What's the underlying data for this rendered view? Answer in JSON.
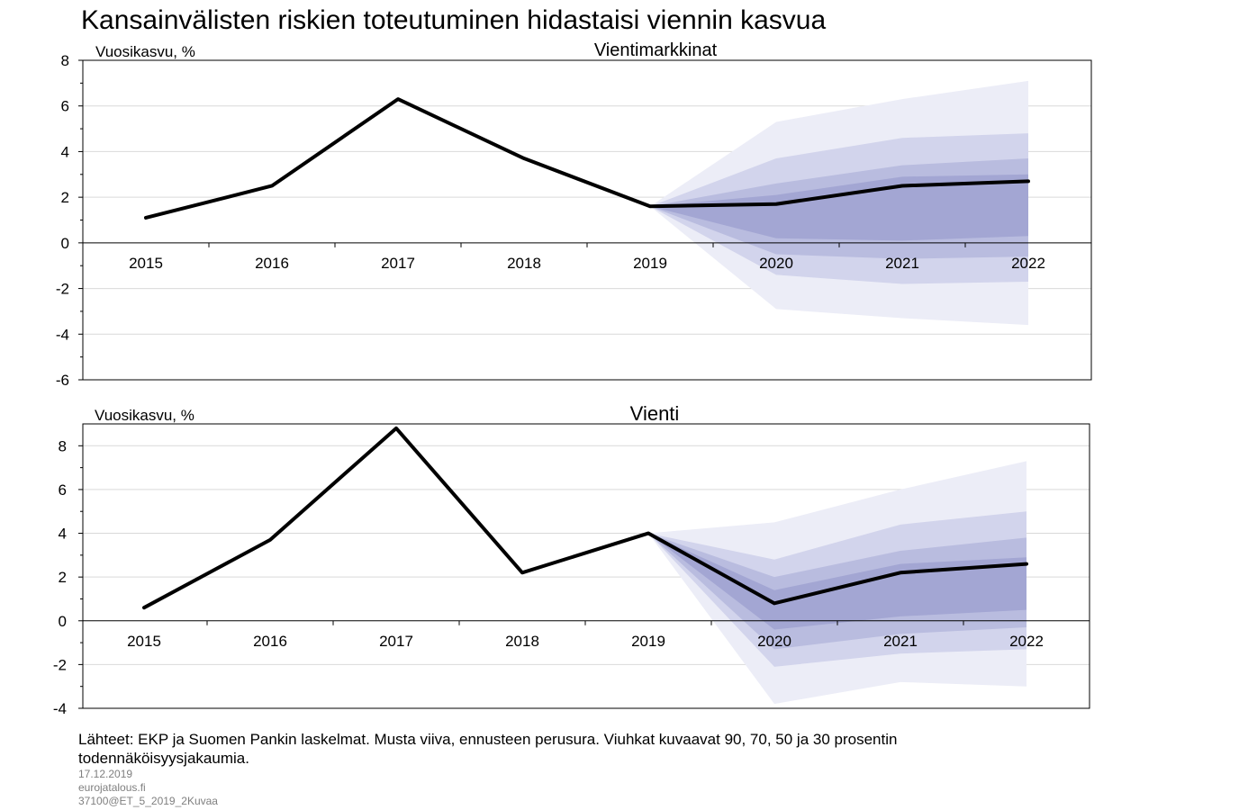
{
  "title": "Kansainvälisten riskien toteutuminen hidastaisi viennin kasvua",
  "source_note": "Lähteet: EKP ja Suomen Pankin laskelmat. Musta viiva, ennusteen perusura. Viuhkat kuvaavat 90, 70, 50 ja 30 prosentin todennäköisyysjakaumia.",
  "meta": {
    "date": "17.12.2019",
    "site": "eurojatalous.fi",
    "code": "37100@ET_5_2019_2Kuvaa"
  },
  "colors": {
    "line": "#000000",
    "fan_90": "#ecedf7",
    "fan_70": "#d2d4ec",
    "fan_50": "#b9bcdf",
    "fan_30": "#a3a6d3",
    "grid": "#d9d9d9"
  },
  "chart_data": [
    {
      "type": "line",
      "title": "Vientimarkkinat",
      "ylabel": "Vuosikasvu, %",
      "categories": [
        "2015",
        "2016",
        "2017",
        "2018",
        "2019",
        "2020",
        "2021",
        "2022"
      ],
      "ylim": [
        -6,
        8
      ],
      "yticks": [
        -6,
        -4,
        -2,
        0,
        2,
        4,
        6,
        8
      ],
      "grid": true,
      "series": [
        {
          "values": [
            1.1,
            2.5,
            6.3,
            3.7,
            1.6,
            1.7,
            2.5,
            2.7
          ]
        }
      ],
      "fan": {
        "start_index": 4,
        "bands": [
          {
            "probability": 90,
            "low": [
              1.6,
              -2.9,
              -3.3,
              -3.6
            ],
            "high": [
              1.6,
              5.3,
              6.3,
              7.1
            ]
          },
          {
            "probability": 70,
            "low": [
              1.6,
              -1.4,
              -1.8,
              -1.7
            ],
            "high": [
              1.6,
              3.7,
              4.6,
              4.8
            ]
          },
          {
            "probability": 50,
            "low": [
              1.6,
              -0.5,
              -0.7,
              -0.6
            ],
            "high": [
              1.6,
              2.6,
              3.4,
              3.7
            ]
          },
          {
            "probability": 30,
            "low": [
              1.6,
              0.2,
              0.1,
              0.3
            ],
            "high": [
              1.6,
              2.1,
              2.9,
              3.0
            ]
          }
        ]
      }
    },
    {
      "type": "line",
      "title": "Vienti",
      "ylabel": "Vuosikasvu, %",
      "categories": [
        "2015",
        "2016",
        "2017",
        "2018",
        "2019",
        "2020",
        "2021",
        "2022"
      ],
      "ylim": [
        -4,
        9
      ],
      "yticks": [
        -4,
        -2,
        0,
        2,
        4,
        6,
        8
      ],
      "grid": true,
      "series": [
        {
          "values": [
            0.6,
            3.7,
            8.8,
            2.2,
            4.0,
            0.8,
            2.2,
            2.6
          ]
        }
      ],
      "fan": {
        "start_index": 4,
        "bands": [
          {
            "probability": 90,
            "low": [
              4.0,
              -3.8,
              -2.8,
              -3.0
            ],
            "high": [
              4.0,
              4.5,
              6.0,
              7.3
            ]
          },
          {
            "probability": 70,
            "low": [
              4.0,
              -2.1,
              -1.5,
              -1.3
            ],
            "high": [
              4.0,
              2.8,
              4.4,
              5.0
            ]
          },
          {
            "probability": 50,
            "low": [
              4.0,
              -1.3,
              -0.6,
              -0.3
            ],
            "high": [
              4.0,
              2.0,
              3.2,
              3.8
            ]
          },
          {
            "probability": 30,
            "low": [
              4.0,
              -0.4,
              0.2,
              0.5
            ],
            "high": [
              4.0,
              1.4,
              2.6,
              2.9
            ]
          }
        ]
      }
    }
  ]
}
